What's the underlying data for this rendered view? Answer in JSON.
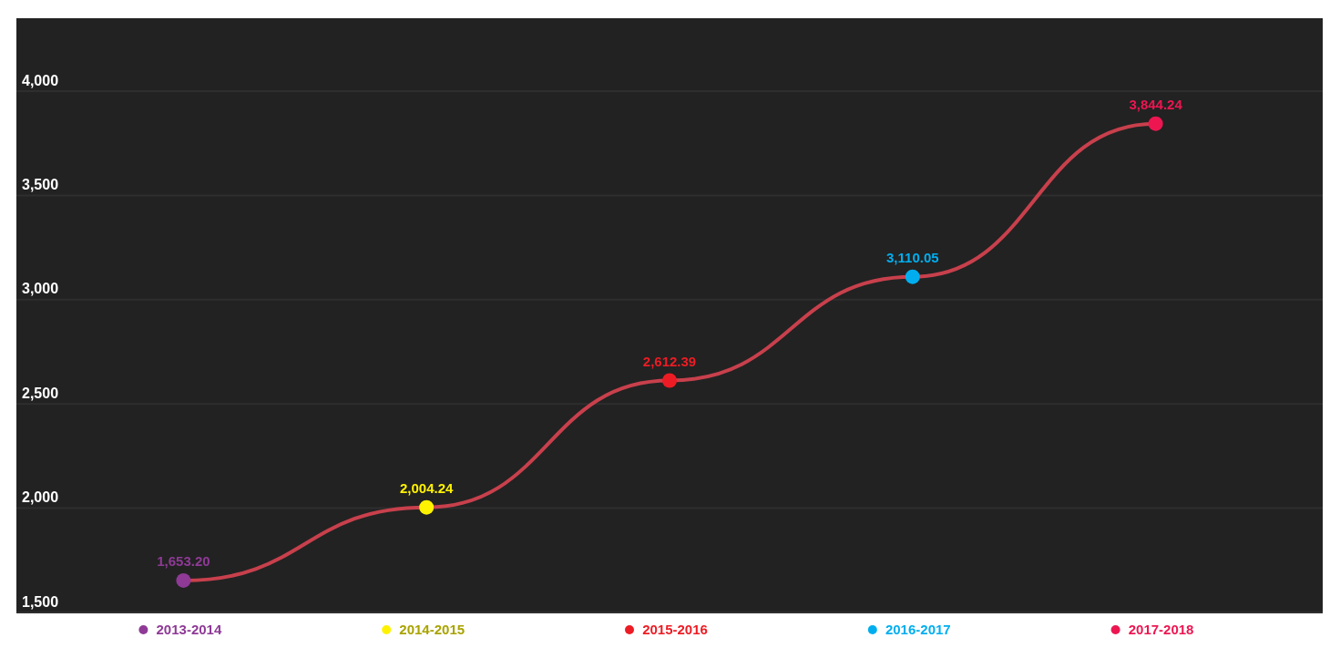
{
  "chart_data": {
    "type": "line",
    "categories": [
      "2013-2014",
      "2014-2015",
      "2015-2016",
      "2016-2017",
      "2017-2018"
    ],
    "series": [
      {
        "color": "#c8404c",
        "values": [
          1653.2,
          2004.24,
          2612.39,
          3110.05,
          3844.24
        ],
        "value_labels": [
          "1,653.20",
          "2,004.24",
          "2,612.39",
          "3,110.05",
          "3,844.24"
        ]
      }
    ],
    "colors": [
      "#8e3a96",
      "#fff200",
      "#ed1c24",
      "#00aeef",
      "#ed1651"
    ],
    "ylim": [
      1500,
      4350
    ],
    "yticks": [
      {
        "value": 1500,
        "label": "1,500"
      },
      {
        "value": 2000,
        "label": "2,000"
      },
      {
        "value": 2500,
        "label": "2,500"
      },
      {
        "value": 3000,
        "label": "3,000"
      },
      {
        "value": 3500,
        "label": "3,500"
      },
      {
        "value": 4000,
        "label": "4,000"
      }
    ],
    "grid": "y",
    "marker": "circle"
  }
}
